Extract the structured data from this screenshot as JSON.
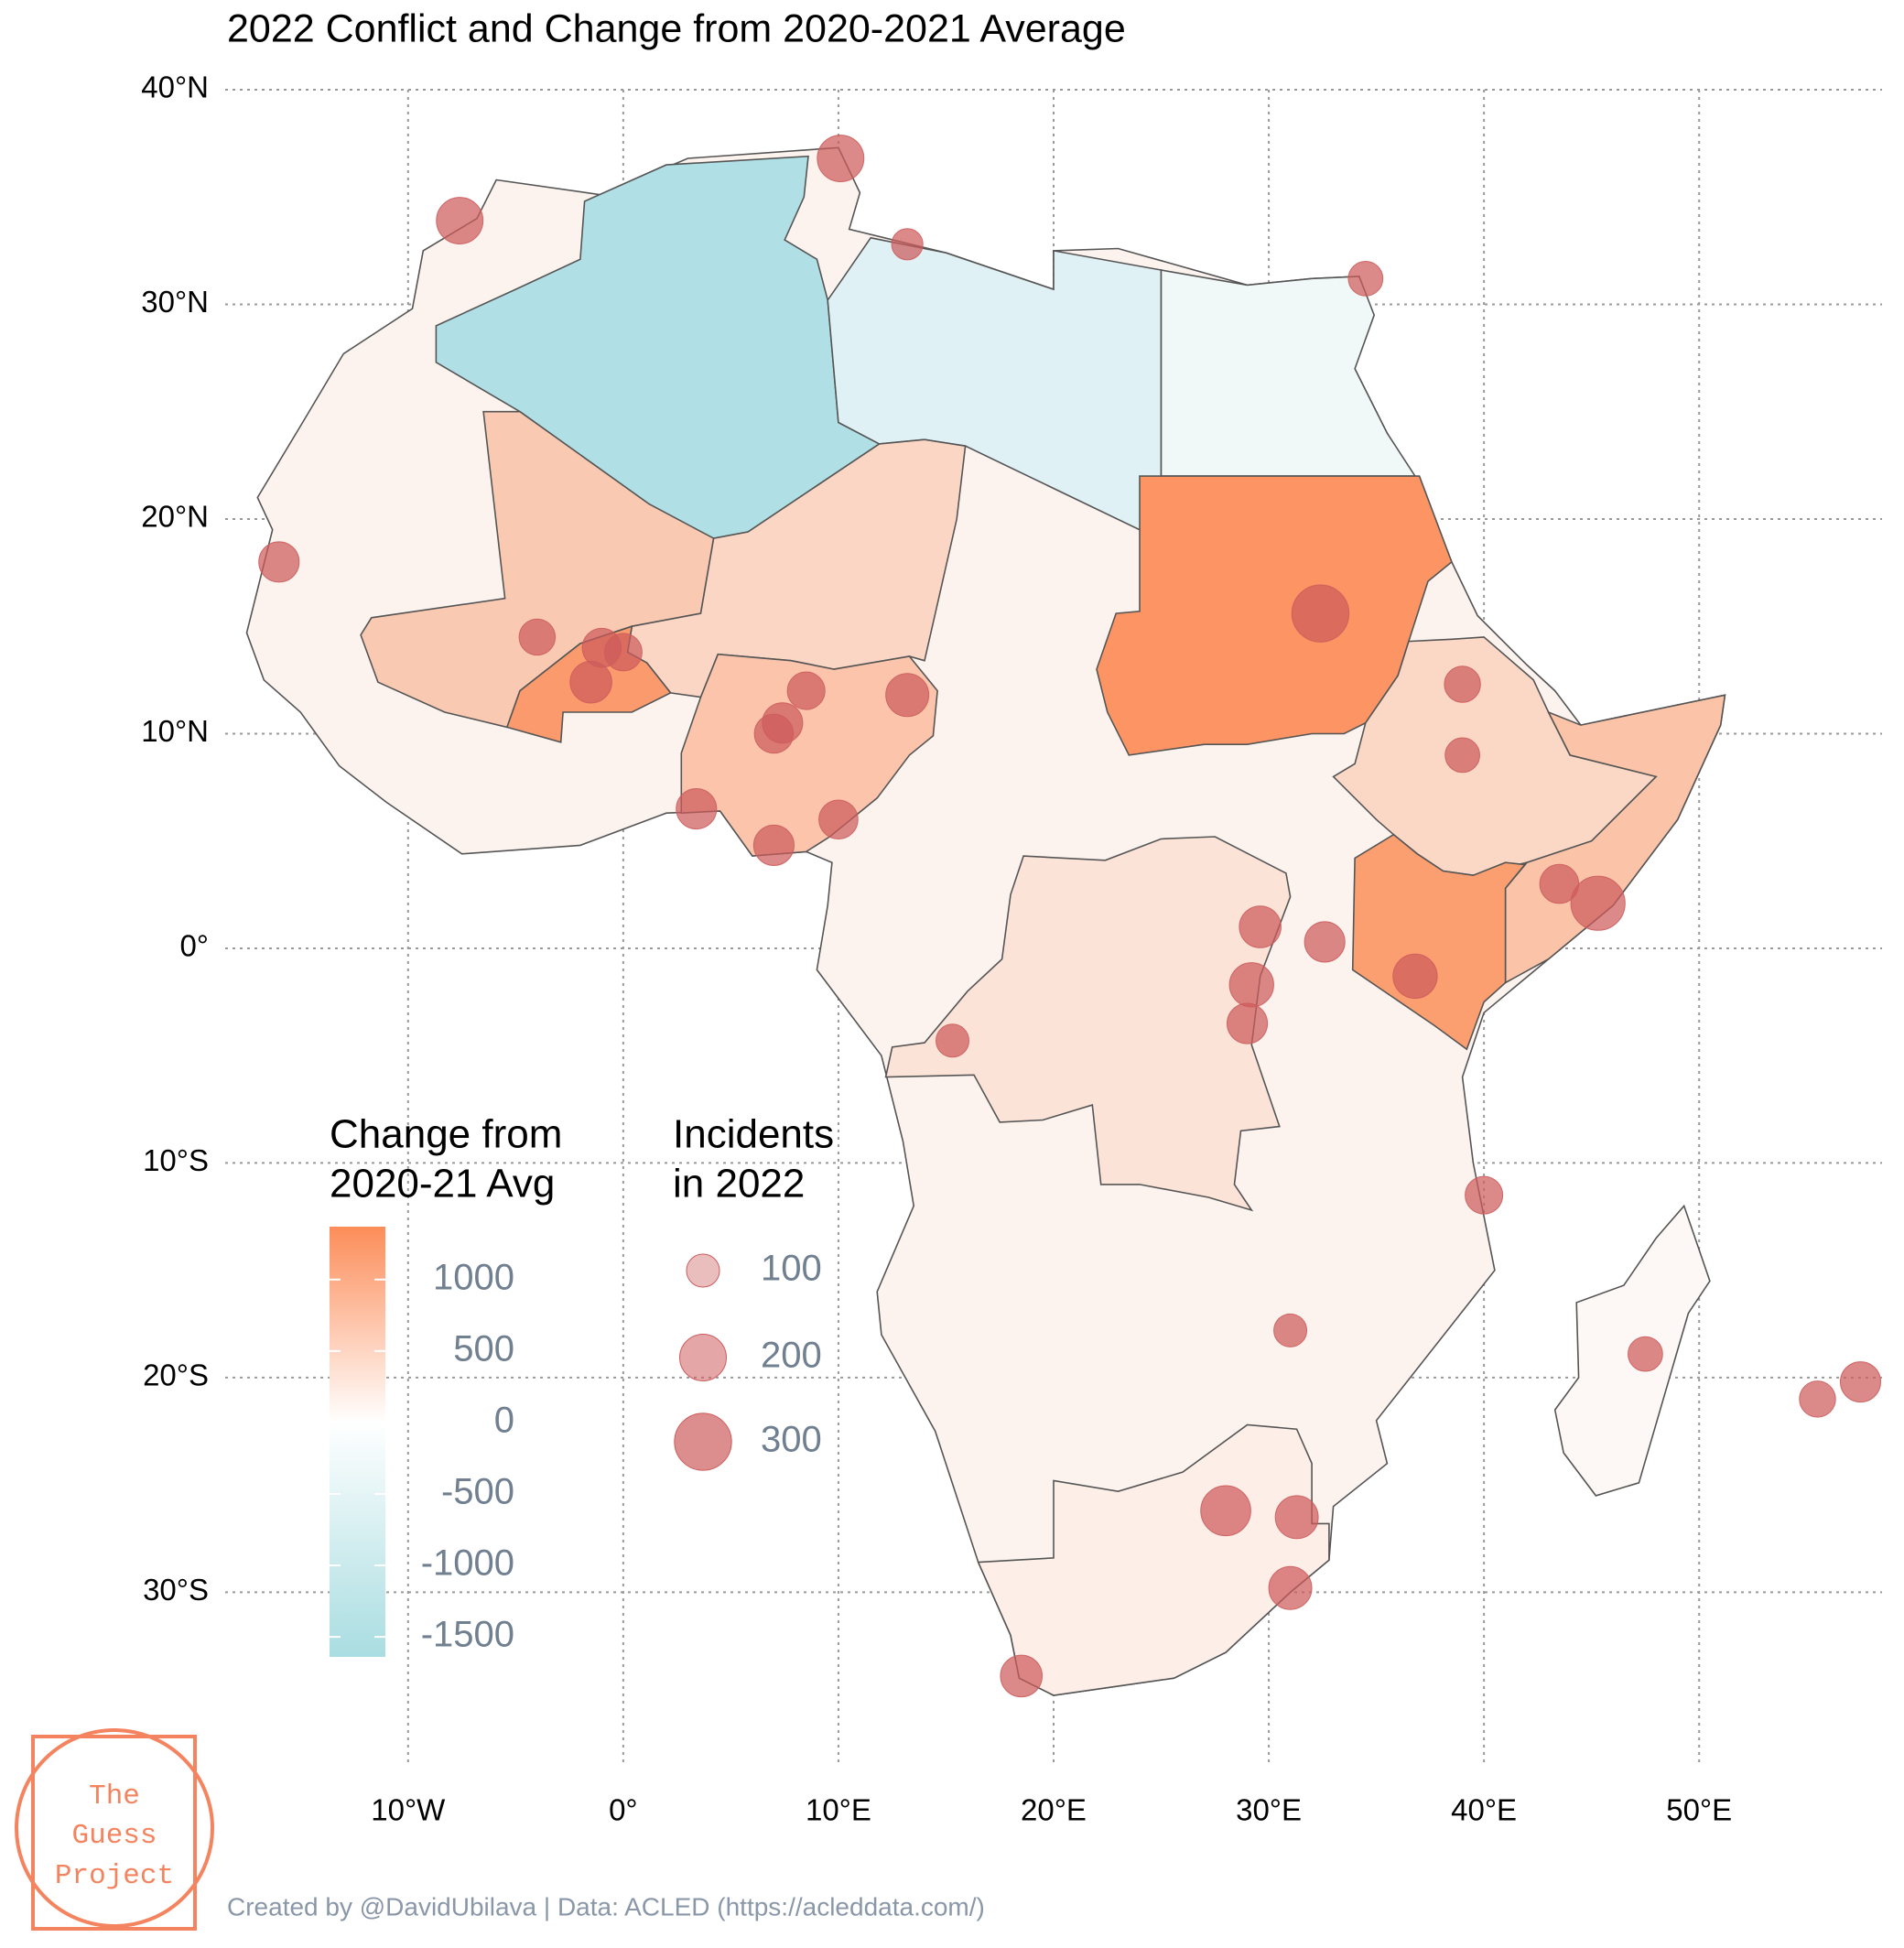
{
  "chart_data": {
    "type": "bubble-map",
    "title": "2022 Conflict and Change from 2020-2021 Average",
    "caption": "Created by @DavidUbilava | Data: ACLED (https://acleddata.com/)",
    "logo": [
      "The",
      "Guess",
      "Project"
    ],
    "xlim": [
      -18.5,
      58.5
    ],
    "ylim": [
      -38,
      40
    ],
    "xticks": [
      {
        "value": -10,
        "label": "10°W"
      },
      {
        "value": 0,
        "label": "0°"
      },
      {
        "value": 10,
        "label": "10°E"
      },
      {
        "value": 20,
        "label": "20°E"
      },
      {
        "value": 30,
        "label": "30°E"
      },
      {
        "value": 40,
        "label": "40°E"
      },
      {
        "value": 50,
        "label": "50°E"
      }
    ],
    "yticks": [
      {
        "value": 40,
        "label": "40°N"
      },
      {
        "value": 30,
        "label": "30°N"
      },
      {
        "value": 20,
        "label": "20°N"
      },
      {
        "value": 10,
        "label": "10°N"
      },
      {
        "value": 0,
        "label": "0°"
      },
      {
        "value": -10,
        "label": "10°S"
      },
      {
        "value": -20,
        "label": "20°S"
      },
      {
        "value": -30,
        "label": "30°S"
      }
    ],
    "grid": true,
    "point_color": "#cd5c5c",
    "colorbar": {
      "title": [
        "Change from",
        "2020-21 Avg"
      ],
      "lim": [
        -1640,
        1370
      ],
      "ticks": [
        1000,
        500,
        0,
        -500,
        -1000,
        -1500
      ],
      "colors": {
        "low": "#a9dde1",
        "mid": "#ffffff",
        "high": "#fc8d59"
      }
    },
    "size_legend": {
      "title": [
        "Incidents",
        "in 2022"
      ],
      "values": [
        100,
        200,
        300
      ]
    },
    "x": [
      32.4,
      45.3,
      -7.6,
      10.1,
      18.5,
      28.0,
      31.0,
      57.5,
      55.5,
      32.6,
      36.8,
      39.0,
      3.4,
      7.0,
      7.4,
      8.5,
      13.2,
      -1.5,
      -1.0,
      0.0,
      -4.0,
      29.2,
      29.0,
      29.6,
      40.0,
      47.5,
      -16.0,
      7.0,
      10.0,
      39.0,
      43.5,
      13.2,
      34.5,
      31.3,
      15.3,
      31.0
    ],
    "y": [
      15.6,
      2.1,
      33.9,
      36.8,
      -33.9,
      -26.2,
      -29.8,
      -20.2,
      -21.0,
      0.3,
      -1.3,
      12.3,
      6.5,
      10.0,
      10.5,
      12.0,
      11.8,
      12.4,
      14.0,
      13.8,
      14.5,
      -1.7,
      -3.5,
      1.0,
      -11.5,
      -18.9,
      18.0,
      4.8,
      6.0,
      9.0,
      3.0,
      32.8,
      31.2,
      -26.5,
      -4.3,
      -17.8
    ],
    "size": [
      300,
      270,
      200,
      200,
      160,
      230,
      170,
      150,
      120,
      150,
      180,
      120,
      150,
      140,
      150,
      130,
      170,
      160,
      140,
      130,
      120,
      180,
      150,
      160,
      130,
      110,
      150,
      150,
      140,
      110,
      140,
      90,
      110,
      170,
      100,
      100
    ]
  }
}
